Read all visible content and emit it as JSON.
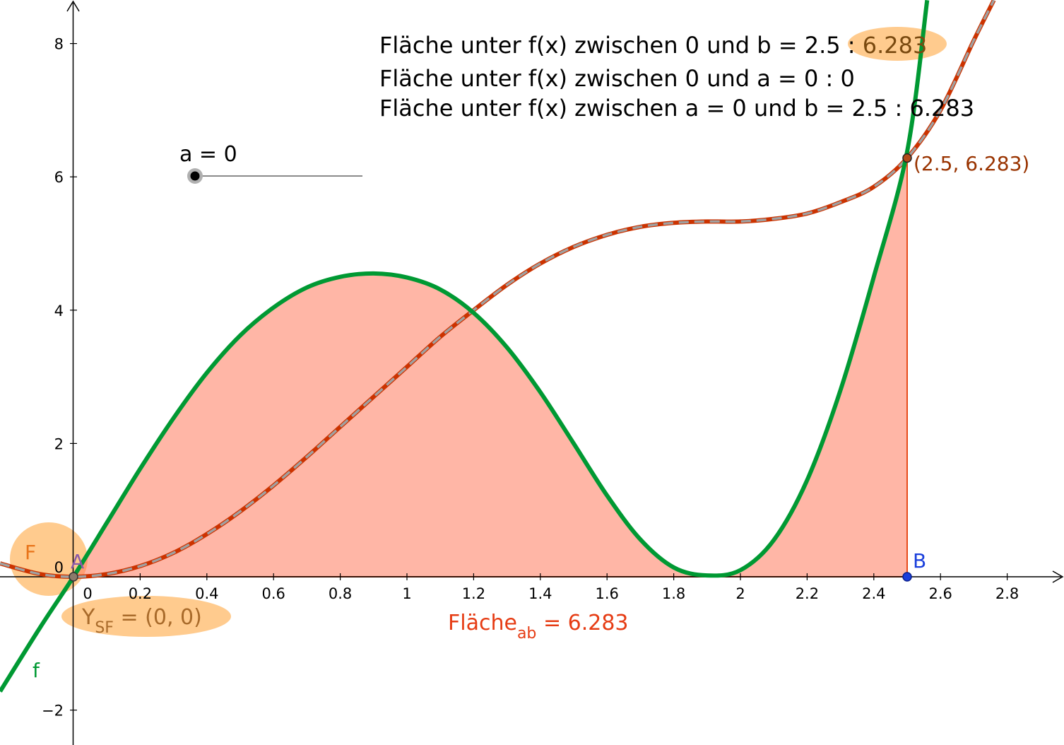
{
  "colors": {
    "function_f": "#009933",
    "area_fill": "#ff7a5c",
    "area_edge": "#e64a19",
    "integral_curve_outer": "#cc3300",
    "integral_curve_inner": "#9e9e9e",
    "highlight": "#ffc27a",
    "point_B": "#1a3fdc",
    "point_A": "#8b5aa8",
    "label_F": "#e8741a",
    "label_area": "#e63c14",
    "label_point": "#993300",
    "label_ysf": "#a86a2a"
  },
  "info": {
    "line1_text": "Fläche unter f(x) zwischen 0 und b = 2.5 : ",
    "line1_value": "6.283",
    "line2_text": "Fläche unter f(x) zwischen 0 und a = 0 :  0",
    "line3_text": "Fläche unter f(x) zwischen a = 0 und b = 2.5 :  6.283"
  },
  "slider": {
    "label": "a = 0",
    "value": 0
  },
  "labels": {
    "f": "f",
    "F": "F",
    "A": "A",
    "B": "B",
    "point_on_curve": "(2.5, 6.283)",
    "ysf_main": "Y",
    "ysf_sub": "SF",
    "ysf_rest": " = (0, 0)",
    "area_main": "Fläche",
    "area_sub": "ab",
    "area_rest": " = 6.283"
  },
  "chart_data": {
    "type": "line",
    "x_ticks": [
      "0",
      "0.2",
      "0.4",
      "0.6",
      "0.8",
      "1",
      "1.2",
      "1.4",
      "1.6",
      "1.8",
      "2",
      "2.2",
      "2.4",
      "2.6",
      "2.8"
    ],
    "y_ticks": [
      "-2",
      "0",
      "2",
      "4",
      "6",
      "8"
    ],
    "xlim": [
      -0.22,
      2.98
    ],
    "ylim": [
      -2.5,
      8.65
    ],
    "lower_bound_a": 0,
    "upper_bound_b": 2.5,
    "area_value": 6.283,
    "series": [
      {
        "name": "f",
        "x": [
          -0.22,
          -0.1,
          0,
          0.1,
          0.2,
          0.3,
          0.4,
          0.5,
          0.6,
          0.7,
          0.8,
          0.9,
          1.0,
          1.1,
          1.2,
          1.3,
          1.4,
          1.5,
          1.6,
          1.7,
          1.8,
          1.9,
          2.0,
          2.1,
          2.2,
          2.3,
          2.4,
          2.5,
          2.56
        ],
        "y": [
          -1.72,
          -0.76,
          0,
          0.81,
          1.62,
          2.38,
          3.06,
          3.62,
          4.04,
          4.34,
          4.5,
          4.55,
          4.49,
          4.31,
          3.96,
          3.44,
          2.77,
          2.0,
          1.22,
          0.56,
          0.14,
          0.02,
          0.1,
          0.55,
          1.45,
          2.8,
          4.5,
          6.38,
          8.65
        ]
      },
      {
        "name": "F",
        "x": [
          -0.22,
          -0.1,
          0,
          0.1,
          0.2,
          0.3,
          0.4,
          0.5,
          0.6,
          0.7,
          0.8,
          0.9,
          1.0,
          1.1,
          1.2,
          1.3,
          1.4,
          1.5,
          1.6,
          1.7,
          1.8,
          1.9,
          2.0,
          2.1,
          2.2,
          2.3,
          2.4,
          2.5,
          2.6,
          2.7,
          2.76
        ],
        "y": [
          0.2,
          0.04,
          0,
          0.04,
          0.16,
          0.36,
          0.64,
          0.98,
          1.37,
          1.8,
          2.25,
          2.7,
          3.15,
          3.6,
          4.0,
          4.38,
          4.7,
          4.95,
          5.13,
          5.25,
          5.31,
          5.33,
          5.33,
          5.37,
          5.45,
          5.62,
          5.85,
          6.283,
          7.0,
          8.05,
          8.65
        ]
      }
    ],
    "points": [
      {
        "name": "A",
        "x": 0,
        "y": 0
      },
      {
        "name": "B",
        "x": 2.5,
        "y": 0
      },
      {
        "name": "(2.5, 6.283)",
        "x": 2.5,
        "y": 6.283
      }
    ]
  }
}
